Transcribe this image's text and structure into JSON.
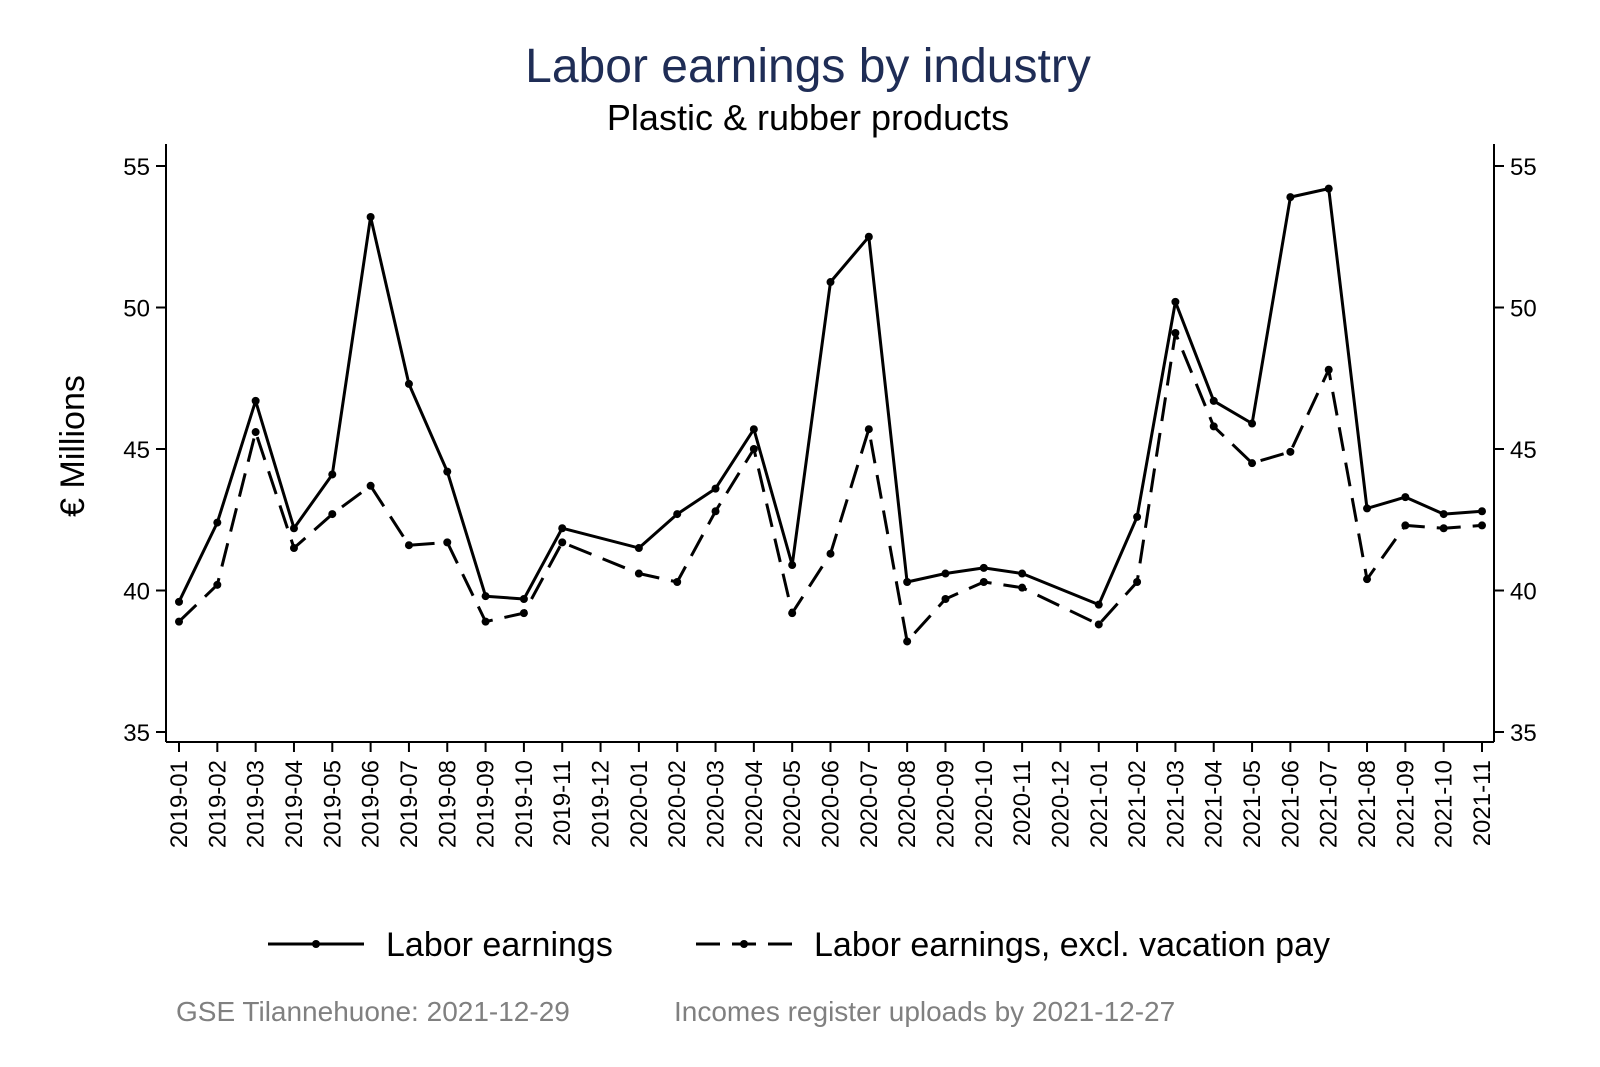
{
  "chart_data": {
    "type": "line",
    "title": "Labor earnings by industry",
    "subtitle": "Plastic & rubber products",
    "ylabel": "€ Millions",
    "ylim": [
      35,
      55
    ],
    "yticks": [
      35,
      40,
      45,
      50,
      55
    ],
    "grid": false,
    "legend_position": "bottom",
    "categories": [
      "2019-01",
      "2019-02",
      "2019-03",
      "2019-04",
      "2019-05",
      "2019-06",
      "2019-07",
      "2019-08",
      "2019-09",
      "2019-10",
      "2019-11",
      "2019-12",
      "2020-01",
      "2020-02",
      "2020-03",
      "2020-04",
      "2020-05",
      "2020-06",
      "2020-07",
      "2020-08",
      "2020-09",
      "2020-10",
      "2020-11",
      "2020-12",
      "2021-01",
      "2021-02",
      "2021-03",
      "2021-04",
      "2021-05",
      "2021-06",
      "2021-07",
      "2021-08",
      "2021-09",
      "2021-10",
      "2021-11"
    ],
    "series": [
      {
        "name": "Labor earnings",
        "style": "solid",
        "color": "#000000",
        "values": [
          39.6,
          42.4,
          46.7,
          42.2,
          44.1,
          53.2,
          47.3,
          44.2,
          39.8,
          39.7,
          42.2,
          null,
          41.5,
          42.7,
          43.6,
          45.7,
          40.9,
          50.9,
          52.5,
          40.3,
          40.6,
          40.8,
          40.6,
          null,
          39.5,
          42.6,
          50.2,
          46.7,
          45.9,
          53.9,
          54.2,
          42.9,
          43.3,
          42.7,
          42.8
        ]
      },
      {
        "name": "Labor earnings, excl. vacation pay",
        "style": "dashed",
        "color": "#000000",
        "values": [
          38.9,
          40.2,
          45.6,
          41.5,
          42.7,
          43.7,
          41.6,
          41.7,
          38.9,
          39.2,
          41.7,
          null,
          40.6,
          40.3,
          42.8,
          45.0,
          39.2,
          41.3,
          45.7,
          38.2,
          39.7,
          40.3,
          40.1,
          null,
          38.8,
          40.3,
          49.1,
          45.8,
          44.5,
          44.9,
          47.8,
          40.4,
          42.3,
          42.2,
          42.3
        ]
      }
    ]
  },
  "footer": {
    "source": "GSE Tilannehuone: 2021-12-29",
    "uploads": "Incomes register uploads by 2021-12-27"
  }
}
